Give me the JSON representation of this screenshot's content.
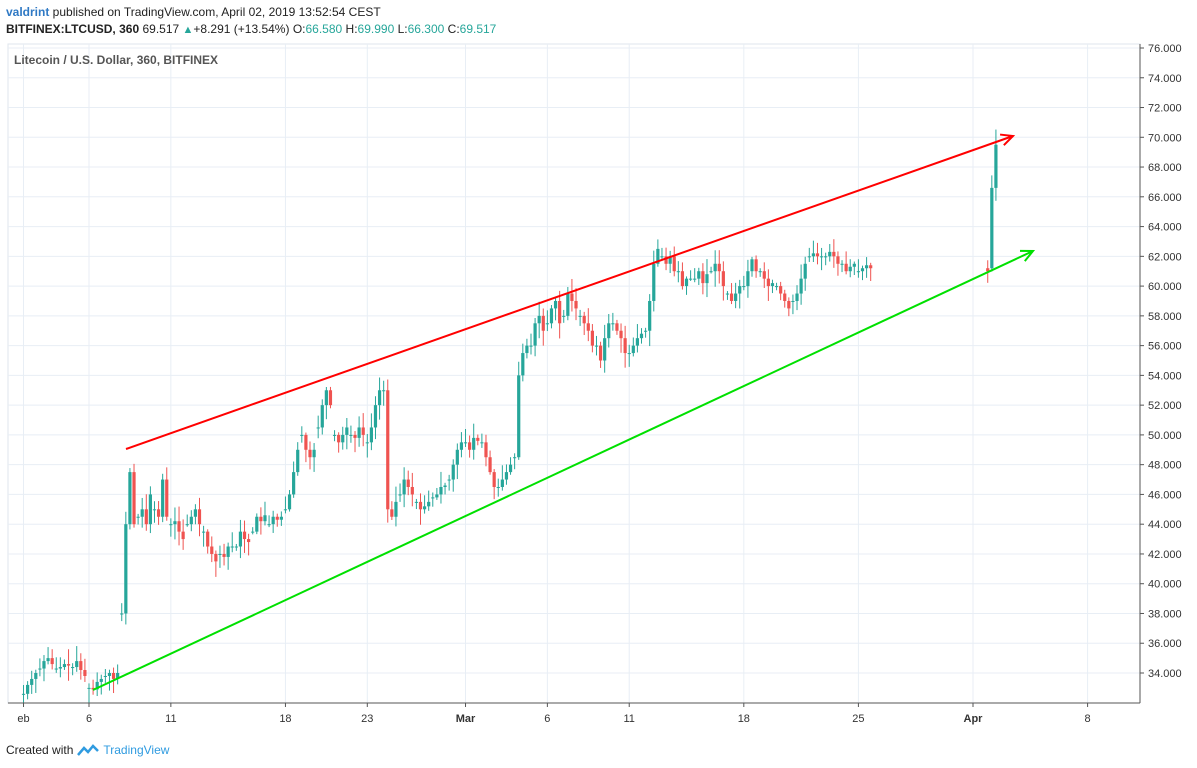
{
  "header": {
    "user": "valdrint",
    "published": " published on TradingView.com, April 02, 2019 13:52:54 CEST",
    "symbol": "BITFINEX:LTCUSD, 360",
    "last": "69.517",
    "change": "+8.291 (+13.54%)",
    "o_label": "O:",
    "o_val": "66.580",
    "h_label": "H:",
    "h_val": "69.990",
    "l_label": "L:",
    "l_val": "66.300",
    "c_label": "C:",
    "c_val": "69.517"
  },
  "footer": {
    "created": "Created with",
    "brand": "TradingView"
  },
  "colors": {
    "up": "#26a69a",
    "down": "#ef5350",
    "resistance": "#ff0000",
    "support": "#00e000",
    "grid": "#e8eef5",
    "axis": "#555555"
  },
  "chart_data": {
    "type": "candlestick",
    "title": "Litecoin / U.S. Dollar, 360, BITFINEX",
    "ylim": [
      32,
      76
    ],
    "yticks": [
      "76.000",
      "74.000",
      "72.000",
      "70.000",
      "68.000",
      "66.000",
      "64.000",
      "62.000",
      "60.000",
      "58.000",
      "56.000",
      "54.000",
      "52.000",
      "50.000",
      "48.000",
      "46.000",
      "44.000",
      "42.000",
      "40.000",
      "38.000",
      "36.000",
      "34.000"
    ],
    "xticks": [
      {
        "label": "eb",
        "day": 2
      },
      {
        "label": "6",
        "day": 6
      },
      {
        "label": "11",
        "day": 11
      },
      {
        "label": "18",
        "day": 18
      },
      {
        "label": "23",
        "day": 23
      },
      {
        "label": "Mar",
        "day": 29
      },
      {
        "label": "6",
        "day": 34
      },
      {
        "label": "11",
        "day": 39
      },
      {
        "label": "18",
        "day": 46
      },
      {
        "label": "25",
        "day": 53
      },
      {
        "label": "Apr",
        "day": 60
      },
      {
        "label": "8",
        "day": 67
      }
    ],
    "x_unit": "days since Feb 1, 2019 (tick labels are dates)",
    "daily": [
      {
        "day": 2,
        "v": [
          32.6,
          33.2,
          33.6,
          34.0
        ]
      },
      {
        "day": 3,
        "v": [
          34.3,
          34.8,
          35.0,
          34.6
        ]
      },
      {
        "day": 4,
        "v": [
          34.3,
          34.4,
          34.6,
          34.5
        ]
      },
      {
        "day": 5,
        "v": [
          34.4,
          34.8,
          34.2,
          33.8
        ]
      },
      {
        "day": 6,
        "v": [
          33.0,
          32.9,
          33.4,
          33.6
        ]
      },
      {
        "day": 7,
        "v": [
          33.8,
          34.0,
          33.6,
          34.0
        ]
      },
      {
        "day": 8,
        "v": [
          38.0,
          44.0,
          47.5,
          44.0
        ]
      },
      {
        "day": 9,
        "v": [
          44.5,
          45.0,
          44.0,
          46.0
        ]
      },
      {
        "day": 10,
        "v": [
          45.0,
          44.5,
          47.0,
          44.5
        ]
      },
      {
        "day": 11,
        "v": [
          44.0,
          44.2,
          43.5,
          43.0
        ]
      },
      {
        "day": 12,
        "v": [
          44.0,
          44.5,
          45.0,
          44.0
        ]
      },
      {
        "day": 13,
        "v": [
          43.5,
          42.5,
          42.0,
          41.5
        ]
      },
      {
        "day": 14,
        "v": [
          42.0,
          41.8,
          42.5,
          42.5
        ]
      },
      {
        "day": 15,
        "v": [
          42.5,
          43.5,
          43.0,
          42.8
        ]
      },
      {
        "day": 16,
        "v": [
          43.5,
          44.5,
          44.2,
          44.6
        ]
      },
      {
        "day": 17,
        "v": [
          44.0,
          44.5,
          44.3,
          44.5
        ]
      },
      {
        "day": 18,
        "v": [
          45.0,
          46.0,
          47.5,
          49.0
        ]
      },
      {
        "day": 19,
        "v": [
          50.0,
          49.0,
          48.5,
          49.0
        ]
      },
      {
        "day": 20,
        "v": [
          50.5,
          52.0,
          53.0,
          52.0
        ]
      },
      {
        "day": 21,
        "v": [
          50.0,
          49.5,
          50.0,
          50.5
        ]
      },
      {
        "day": 22,
        "v": [
          50.0,
          49.8,
          50.5,
          50.0
        ]
      },
      {
        "day": 23,
        "v": [
          49.5,
          50.5,
          52.0,
          53.0
        ]
      },
      {
        "day": 24,
        "v": [
          53.0,
          45.0,
          44.5,
          45.5
        ]
      },
      {
        "day": 25,
        "v": [
          46.0,
          47.0,
          46.5,
          46.0
        ]
      },
      {
        "day": 26,
        "v": [
          45.5,
          45.0,
          45.2,
          45.5
        ]
      },
      {
        "day": 27,
        "v": [
          45.8,
          46.0,
          46.5,
          46.6
        ]
      },
      {
        "day": 28,
        "v": [
          47.0,
          48.0,
          49.0,
          49.5
        ]
      },
      {
        "day": 29,
        "v": [
          49.5,
          49.0,
          49.8,
          49.6
        ]
      },
      {
        "day": 30,
        "v": [
          49.5,
          48.5,
          47.5,
          46.5
        ]
      },
      {
        "day": 31,
        "v": [
          46.5,
          47.0,
          47.5,
          48.0
        ]
      },
      {
        "day": 32,
        "v": [
          48.5,
          54.0,
          55.5,
          56.0
        ]
      },
      {
        "day": 33,
        "v": [
          56.0,
          57.5,
          58.0,
          57.0
        ]
      },
      {
        "day": 34,
        "v": [
          57.5,
          58.5,
          59.0,
          57.5
        ]
      },
      {
        "day": 35,
        "v": [
          58.0,
          59.5,
          59.0,
          58.5
        ]
      },
      {
        "day": 36,
        "v": [
          58.0,
          57.5,
          57.0,
          56.0
        ]
      },
      {
        "day": 37,
        "v": [
          56.0,
          55.0,
          56.5,
          57.5
        ]
      },
      {
        "day": 38,
        "v": [
          57.5,
          57.0,
          56.5,
          55.5
        ]
      },
      {
        "day": 39,
        "v": [
          55.5,
          56.0,
          56.5,
          56.8
        ]
      },
      {
        "day": 40,
        "v": [
          57.0,
          59.0,
          61.5,
          62.5
        ]
      },
      {
        "day": 41,
        "v": [
          62.0,
          61.5,
          62.0,
          61.0
        ]
      },
      {
        "day": 42,
        "v": [
          61.0,
          60.0,
          60.5,
          60.5
        ]
      },
      {
        "day": 43,
        "v": [
          60.5,
          61.0,
          60.2,
          60.8
        ]
      },
      {
        "day": 44,
        "v": [
          61.0,
          61.5,
          61.0,
          60.0
        ]
      },
      {
        "day": 45,
        "v": [
          59.5,
          59.0,
          59.5,
          60.0
        ]
      },
      {
        "day": 46,
        "v": [
          60.0,
          61.0,
          61.8,
          61.0
        ]
      },
      {
        "day": 47,
        "v": [
          61.0,
          60.5,
          60.0,
          60.2
        ]
      },
      {
        "day": 48,
        "v": [
          60.0,
          59.5,
          59.0,
          58.5
        ]
      },
      {
        "day": 49,
        "v": [
          59.0,
          59.5,
          60.5,
          61.5
        ]
      },
      {
        "day": 50,
        "v": [
          62.0,
          62.2,
          62.0,
          62.0
        ]
      },
      {
        "day": 51,
        "v": [
          62.0,
          62.3,
          62.0,
          61.5
        ]
      },
      {
        "day": 52,
        "v": [
          61.5,
          61.0,
          61.3,
          61.5
        ]
      },
      {
        "day": 53,
        "v": [
          61.0,
          61.2,
          61.4,
          61.2
        ]
      }
    ]
  }
}
